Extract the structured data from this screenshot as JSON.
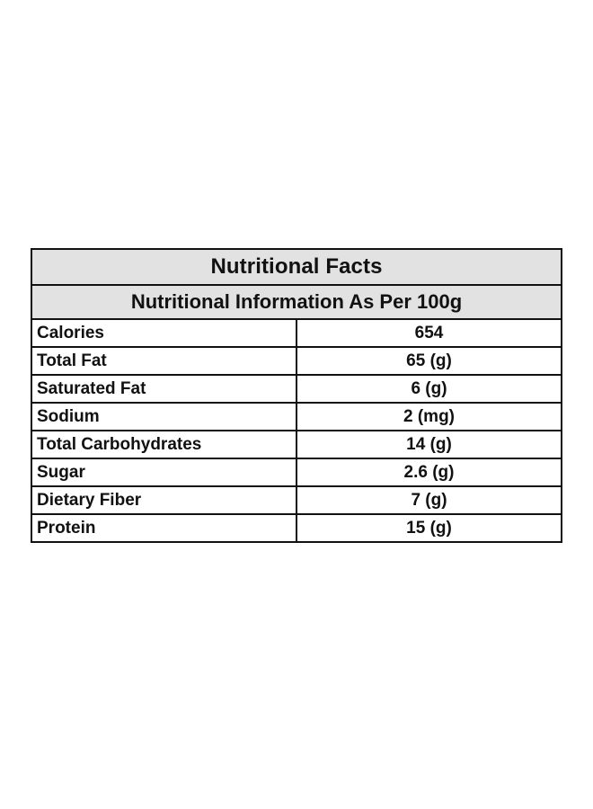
{
  "table": {
    "title": "Nutritional Facts",
    "subtitle": "Nutritional Information As Per 100g",
    "rows": [
      {
        "name": "Calories",
        "value": "654"
      },
      {
        "name": "Total Fat",
        "value": "65 (g)"
      },
      {
        "name": "Saturated Fat",
        "value": "6 (g)"
      },
      {
        "name": "Sodium",
        "value": "2 (mg)"
      },
      {
        "name": "Total Carbohydrates",
        "value": "14 (g)"
      },
      {
        "name": "Sugar",
        "value": "2.6 (g)"
      },
      {
        "name": "Dietary Fiber",
        "value": "7 (g)"
      },
      {
        "name": "Protein",
        "value": "15 (g)"
      }
    ],
    "colors": {
      "header_background": "#e2e2e2",
      "border": "#111111",
      "text": "#111111"
    }
  }
}
